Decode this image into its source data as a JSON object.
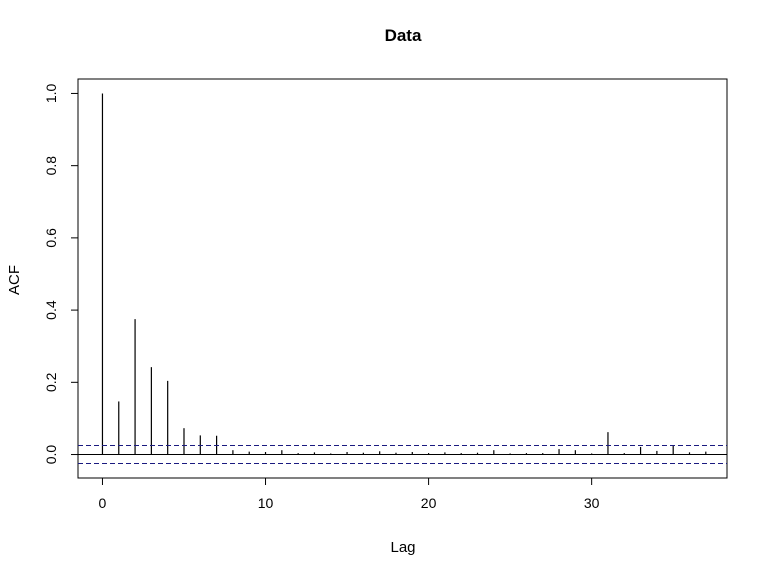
{
  "chart_data": {
    "type": "bar",
    "title": "Data",
    "xlabel": "Lag",
    "ylabel": "ACF",
    "xlim": [
      -1.5,
      38.3
    ],
    "ylim": [
      -0.065,
      1.04
    ],
    "xticks": [
      0,
      10,
      20,
      30
    ],
    "yticks": [
      0.0,
      0.2,
      0.4,
      0.6,
      0.8,
      1.0
    ],
    "xtick_labels": [
      "0",
      "10",
      "20",
      "30"
    ],
    "ytick_labels": [
      "0.0",
      "0.2",
      "0.4",
      "0.6",
      "0.8",
      "1.0"
    ],
    "confidence_bound": 0.025,
    "grid": false,
    "colors": {
      "bars": "#000000",
      "confidence_lines": "#1a1a80",
      "zero_line": "#000000"
    },
    "series": [
      {
        "lags": [
          0,
          1,
          2,
          3,
          4,
          5,
          6,
          7,
          8,
          9,
          10,
          11,
          12,
          13,
          14,
          15,
          16,
          17,
          18,
          19,
          20,
          21,
          22,
          23,
          24,
          25,
          26,
          27,
          28,
          29,
          30,
          31,
          32,
          33,
          34,
          35,
          36,
          37
        ],
        "values": [
          1.0,
          0.147,
          0.375,
          0.242,
          0.204,
          0.073,
          0.053,
          0.052,
          0.012,
          0.008,
          0.007,
          0.012,
          0.004,
          0.006,
          0.003,
          0.007,
          0.005,
          0.009,
          0.005,
          0.007,
          0.004,
          0.006,
          0.004,
          0.005,
          0.012,
          0.003,
          0.004,
          0.004,
          0.015,
          0.012,
          0.003,
          0.062,
          0.004,
          0.021,
          0.01,
          0.024,
          0.006,
          0.008
        ]
      }
    ]
  }
}
